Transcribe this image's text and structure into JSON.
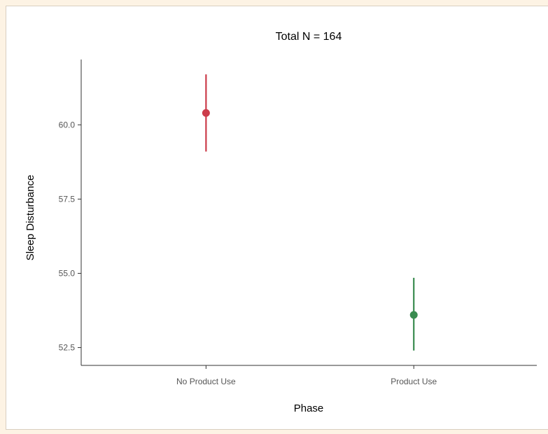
{
  "chart_data": {
    "type": "scatter",
    "title": "Total N = 164",
    "xlabel": "Phase",
    "ylabel": "Sleep Disturbance",
    "categories": [
      "No Product Use",
      "Product Use"
    ],
    "points": [
      {
        "category": "No Product Use",
        "value": 60.4,
        "lower": 59.1,
        "upper": 61.7,
        "color": "#cc3c4a"
      },
      {
        "category": "Product Use",
        "value": 53.6,
        "lower": 52.4,
        "upper": 54.85,
        "color": "#3a8c50"
      }
    ],
    "yticks": [
      52.5,
      55.0,
      57.5,
      60.0
    ],
    "ytick_labels": [
      "52.5",
      "55.0",
      "57.5",
      "60.0"
    ],
    "ylim": [
      51.9,
      62.2
    ],
    "grid": false,
    "legend": "none"
  }
}
